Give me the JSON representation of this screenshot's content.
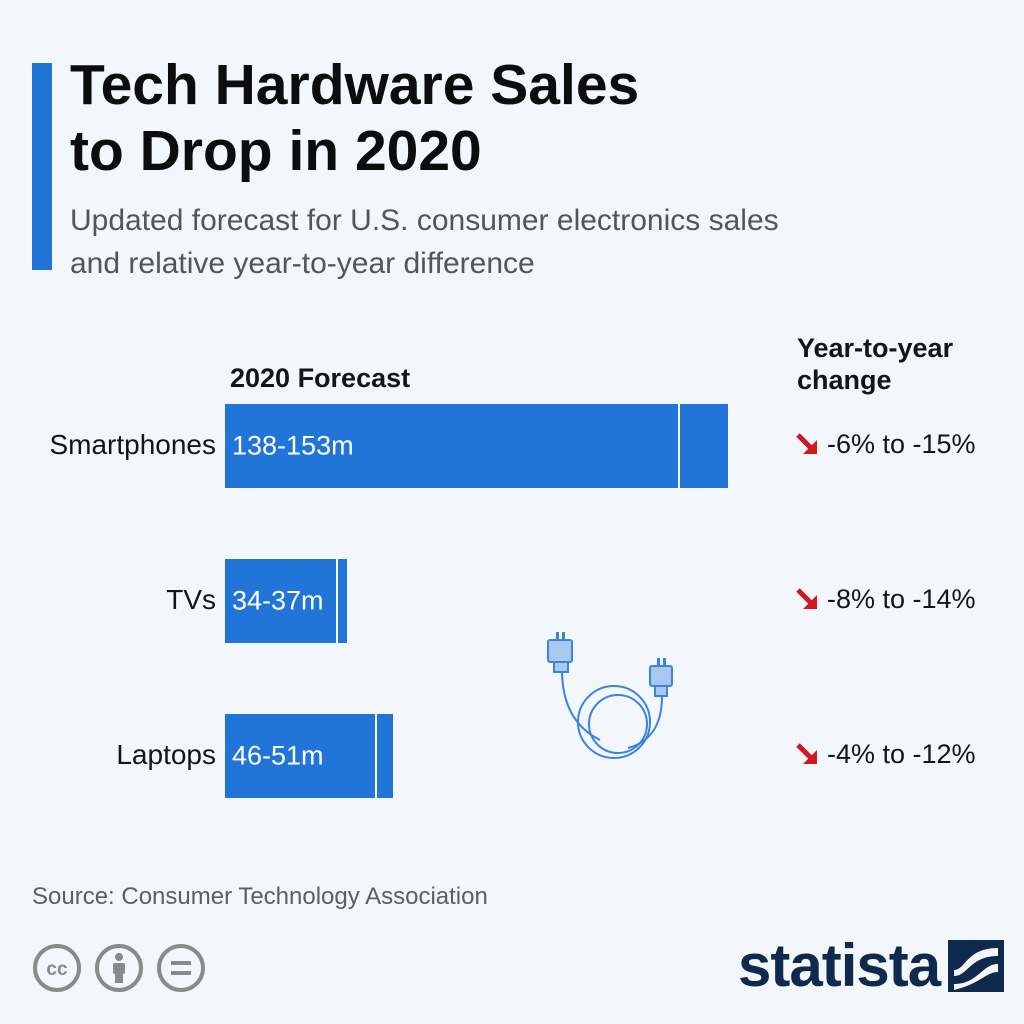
{
  "header": {
    "title_line1": "Tech Hardware Sales",
    "title_line2": "to Drop in 2020",
    "subtitle_line1": "Updated forecast for U.S. consumer electronics sales",
    "subtitle_line2": "and relative year-to-year difference"
  },
  "columns": {
    "forecast_head": "2020 Forecast",
    "change_head_line1": "Year-to-year",
    "change_head_line2": "change"
  },
  "chart_data": {
    "type": "bar",
    "orientation": "horizontal",
    "unit": "m",
    "categories": [
      "Smartphones",
      "TVs",
      "Laptops"
    ],
    "value_labels": [
      "138-153m",
      "34-37m",
      "46-51m"
    ],
    "ranges": [
      [
        138,
        153
      ],
      [
        34,
        37
      ],
      [
        46,
        51
      ]
    ],
    "change_labels": [
      "-6% to -15%",
      "-8% to -14%",
      "-4% to -12%"
    ],
    "change_ranges": [
      [
        -6,
        -15
      ],
      [
        -8,
        -14
      ],
      [
        -4,
        -12
      ]
    ],
    "bar_color": "#2175d9",
    "arrow_color": "#d0191f"
  },
  "footer": {
    "source": "Source: Consumer Technology Association",
    "license_icons": [
      "cc-icon",
      "by-attribution-icon",
      "nd-noderivatives-icon"
    ],
    "logo_text": "statista"
  }
}
